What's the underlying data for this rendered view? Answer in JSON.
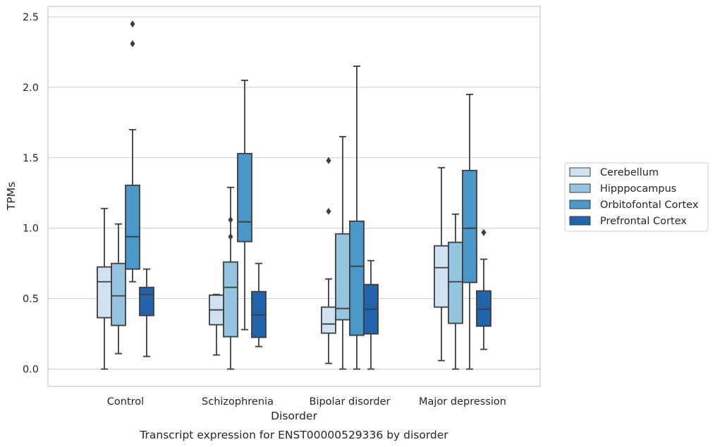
{
  "chart_data": {
    "type": "box",
    "title": "",
    "caption": "Transcript expression for ENST00000529336 by disorder",
    "xlabel": "Disorder",
    "ylabel": "TPMs",
    "ylim": [
      -0.12,
      2.58
    ],
    "yticks": [
      0.0,
      0.5,
      1.0,
      1.5,
      2.0,
      2.5
    ],
    "ytick_labels": [
      "0.0",
      "0.5",
      "1.0",
      "1.5",
      "2.0",
      "2.5"
    ],
    "grid": "horizontal",
    "legend_position": "right",
    "categories": [
      "Control",
      "Schizophrenia",
      "Bipolar disorder",
      "Major depression"
    ],
    "series": [
      {
        "name": "Cerebellum",
        "color": "#d0e1f2",
        "boxes": [
          {
            "whisker_low": 0.0,
            "q1": 0.365,
            "median": 0.62,
            "q3": 0.725,
            "whisker_high": 1.14,
            "outliers": []
          },
          {
            "whisker_low": 0.1,
            "q1": 0.315,
            "median": 0.42,
            "q3": 0.525,
            "whisker_high": 0.53,
            "outliers": []
          },
          {
            "whisker_low": 0.04,
            "q1": 0.255,
            "median": 0.32,
            "q3": 0.44,
            "whisker_high": 0.64,
            "outliers": [
              1.12,
              1.48
            ]
          },
          {
            "whisker_low": 0.06,
            "q1": 0.44,
            "median": 0.72,
            "q3": 0.875,
            "whisker_high": 1.43,
            "outliers": []
          }
        ]
      },
      {
        "name": "Hipppocampus",
        "color": "#94c4df",
        "boxes": [
          {
            "whisker_low": 0.11,
            "q1": 0.31,
            "median": 0.52,
            "q3": 0.75,
            "whisker_high": 1.03,
            "outliers": []
          },
          {
            "whisker_low": 0.0,
            "q1": 0.23,
            "median": 0.58,
            "q3": 0.76,
            "whisker_high": 1.29,
            "outliers": [
              0.94,
              1.06
            ]
          },
          {
            "whisker_low": 0.0,
            "q1": 0.35,
            "median": 0.43,
            "q3": 0.96,
            "whisker_high": 1.65,
            "outliers": []
          },
          {
            "whisker_low": 0.0,
            "q1": 0.325,
            "median": 0.62,
            "q3": 0.9,
            "whisker_high": 1.1,
            "outliers": []
          }
        ]
      },
      {
        "name": "Orbitofontal Cortex",
        "color": "#4a98c9",
        "boxes": [
          {
            "whisker_low": 0.62,
            "q1": 0.71,
            "median": 0.94,
            "q3": 1.305,
            "whisker_high": 1.7,
            "outliers": [
              2.31,
              2.45
            ]
          },
          {
            "whisker_low": 0.28,
            "q1": 0.905,
            "median": 1.045,
            "q3": 1.53,
            "whisker_high": 2.05,
            "outliers": []
          },
          {
            "whisker_low": 0.0,
            "q1": 0.24,
            "median": 0.73,
            "q3": 1.05,
            "whisker_high": 2.15,
            "outliers": []
          },
          {
            "whisker_low": 0.0,
            "q1": 0.615,
            "median": 1.0,
            "q3": 1.41,
            "whisker_high": 1.95,
            "outliers": []
          }
        ]
      },
      {
        "name": "Prefrontal Cortex",
        "color": "#2164ab",
        "boxes": [
          {
            "whisker_low": 0.09,
            "q1": 0.38,
            "median": 0.53,
            "q3": 0.58,
            "whisker_high": 0.71,
            "outliers": []
          },
          {
            "whisker_low": 0.16,
            "q1": 0.225,
            "median": 0.385,
            "q3": 0.55,
            "whisker_high": 0.75,
            "outliers": []
          },
          {
            "whisker_low": 0.0,
            "q1": 0.25,
            "median": 0.425,
            "q3": 0.6,
            "whisker_high": 0.77,
            "outliers": []
          },
          {
            "whisker_low": 0.14,
            "q1": 0.305,
            "median": 0.425,
            "q3": 0.555,
            "whisker_high": 0.78,
            "outliers": [
              0.97
            ]
          }
        ]
      }
    ]
  },
  "colors": {
    "grid": "#cccccc",
    "spine": "#cccccc",
    "box_edge": "#3d3d3d"
  }
}
